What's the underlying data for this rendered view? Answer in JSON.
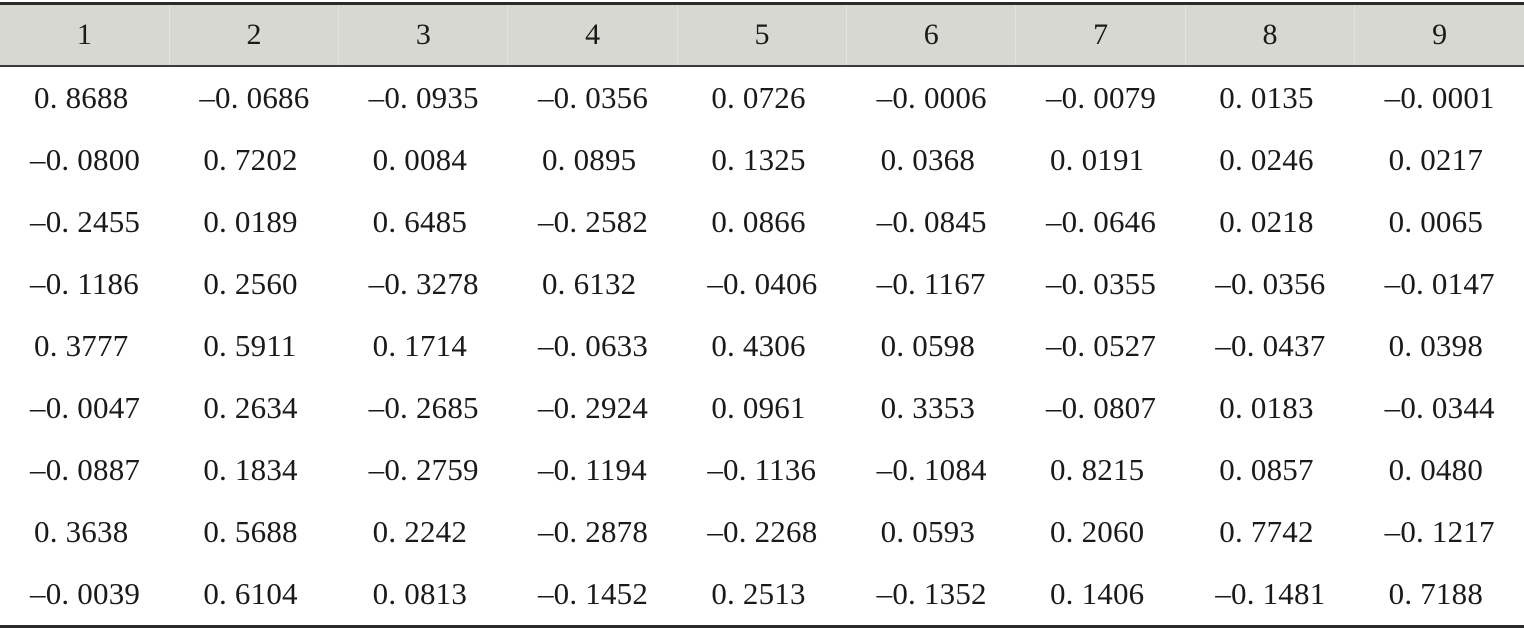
{
  "table": {
    "headers": [
      "1",
      "2",
      "3",
      "4",
      "5",
      "6",
      "7",
      "8",
      "9"
    ],
    "rows": [
      [
        "0. 8688",
        "–0. 0686",
        "–0. 0935",
        "–0. 0356",
        "0. 0726",
        "–0. 0006",
        "–0. 0079",
        "0. 0135",
        "–0. 0001"
      ],
      [
        "–0. 0800",
        "0. 7202",
        "0. 0084",
        "0. 0895",
        "0. 1325",
        "0. 0368",
        "0. 0191",
        "0. 0246",
        "0. 0217"
      ],
      [
        "–0. 2455",
        "0. 0189",
        "0. 6485",
        "–0. 2582",
        "0. 0866",
        "–0. 0845",
        "–0. 0646",
        "0. 0218",
        "0. 0065"
      ],
      [
        "–0. 1186",
        "0. 2560",
        "–0. 3278",
        "0. 6132",
        "–0. 0406",
        "–0. 1167",
        "–0. 0355",
        "–0. 0356",
        "–0. 0147"
      ],
      [
        "0. 3777",
        "0. 5911",
        "0. 1714",
        "–0. 0633",
        "0. 4306",
        "0. 0598",
        "–0. 0527",
        "–0. 0437",
        "0. 0398"
      ],
      [
        "–0. 0047",
        "0. 2634",
        "–0. 2685",
        "–0. 2924",
        "0. 0961",
        "0. 3353",
        "–0. 0807",
        "0. 0183",
        "–0. 0344"
      ],
      [
        "–0. 0887",
        "0. 1834",
        "–0. 2759",
        "–0. 1194",
        "–0. 1136",
        "–0. 1084",
        "0. 8215",
        "0. 0857",
        "0. 0480"
      ],
      [
        "0. 3638",
        "0. 5688",
        "0. 2242",
        "–0. 2878",
        "–0. 2268",
        "0. 0593",
        "0. 2060",
        "0. 7742",
        "–0. 1217"
      ],
      [
        "–0. 0039",
        "0. 6104",
        "0. 0813",
        "–0. 1452",
        "0. 2513",
        "–0. 1352",
        "0. 1406",
        "–0. 1481",
        "0. 7188"
      ]
    ]
  },
  "colors": {
    "header_background": "#d8d8d3",
    "rule_color": "#2b2b2b",
    "text_color": "#1a1a1a"
  }
}
